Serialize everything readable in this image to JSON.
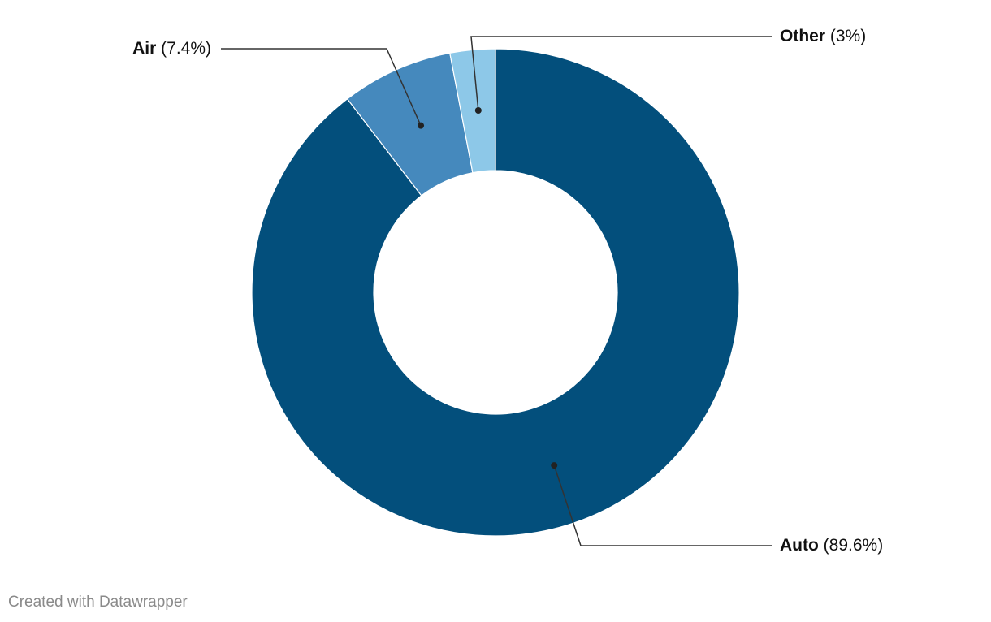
{
  "chart_data": {
    "type": "pie",
    "variant": "donut",
    "title": "",
    "slices": [
      {
        "label": "Auto",
        "value": 89.6,
        "display": "(89.6%)",
        "color": "#034f7c"
      },
      {
        "label": "Air",
        "value": 7.4,
        "display": "(7.4%)",
        "color": "#4589bd"
      },
      {
        "label": "Other",
        "value": 3,
        "display": "(3%)",
        "color": "#8dc8e8"
      }
    ],
    "slice_border_color": "#ffffff",
    "leader_line_color": "#333333",
    "label_text_color": "#111111"
  },
  "footer": {
    "credit": "Created with Datawrapper"
  }
}
